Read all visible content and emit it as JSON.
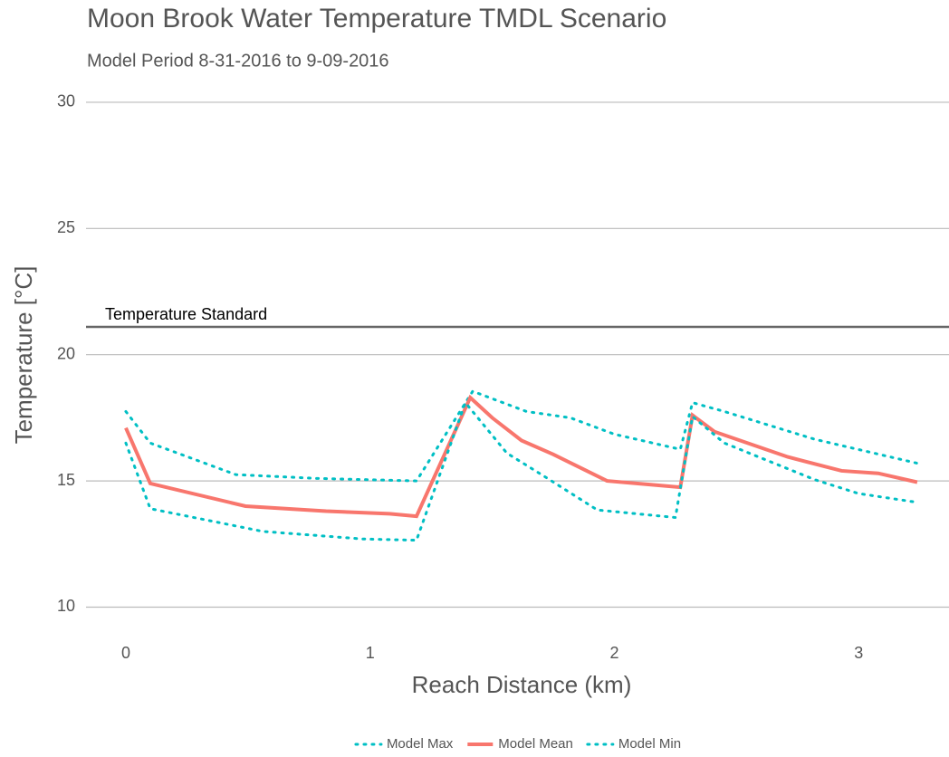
{
  "chart_data": {
    "type": "line",
    "title": "Moon Brook Water Temperature TMDL Scenario",
    "subtitle": "Model Period 8-31-2016 to 9-09-2016",
    "x_label": "Reach Distance (km)",
    "y_label": "Temperature [°C]",
    "xlim": [
      -0.163,
      3.37
    ],
    "ylim": [
      9.3,
      30.5
    ],
    "xticks": [
      0,
      1,
      2,
      3
    ],
    "yticks": [
      10,
      15,
      20,
      25,
      30
    ],
    "grid": true,
    "legend": "bottom",
    "hline": {
      "value": 21.1,
      "label": "Temperature Standard",
      "color": "#666666"
    },
    "series": [
      {
        "name": "Model Max",
        "color": "#00BFC4",
        "dash": "dotted",
        "x": [
          0,
          0.1,
          0.45,
          0.78,
          1.19,
          1.42,
          1.64,
          1.82,
          2.0,
          2.27,
          2.32,
          2.45,
          2.82,
          3.24
        ],
        "values": [
          17.75,
          16.5,
          15.25,
          15.1,
          15.0,
          18.55,
          17.75,
          17.5,
          16.85,
          16.25,
          18.1,
          17.75,
          16.65,
          15.7
        ]
      },
      {
        "name": "Model Mean",
        "color": "#F8766D",
        "dash": "solid",
        "x": [
          0,
          0.1,
          0.49,
          0.82,
          1.08,
          1.19,
          1.41,
          1.5,
          1.62,
          1.75,
          1.97,
          2.15,
          2.27,
          2.32,
          2.41,
          2.71,
          2.93,
          3.08,
          3.24
        ],
        "values": [
          17.1,
          14.9,
          14.0,
          13.8,
          13.7,
          13.6,
          18.3,
          17.5,
          16.6,
          16.05,
          15.0,
          14.85,
          14.75,
          17.6,
          16.95,
          15.95,
          15.4,
          15.3,
          14.95
        ]
      },
      {
        "name": "Model Min",
        "color": "#00BFC4",
        "dash": "dotted",
        "x": [
          0,
          0.1,
          0.56,
          0.97,
          1.19,
          1.39,
          1.56,
          1.71,
          1.93,
          2.25,
          2.32,
          2.45,
          2.82,
          3.0,
          3.24
        ],
        "values": [
          16.5,
          13.9,
          13.0,
          12.7,
          12.65,
          18.1,
          16.1,
          15.2,
          13.85,
          13.55,
          17.55,
          16.5,
          15.05,
          14.5,
          14.15
        ]
      }
    ]
  }
}
